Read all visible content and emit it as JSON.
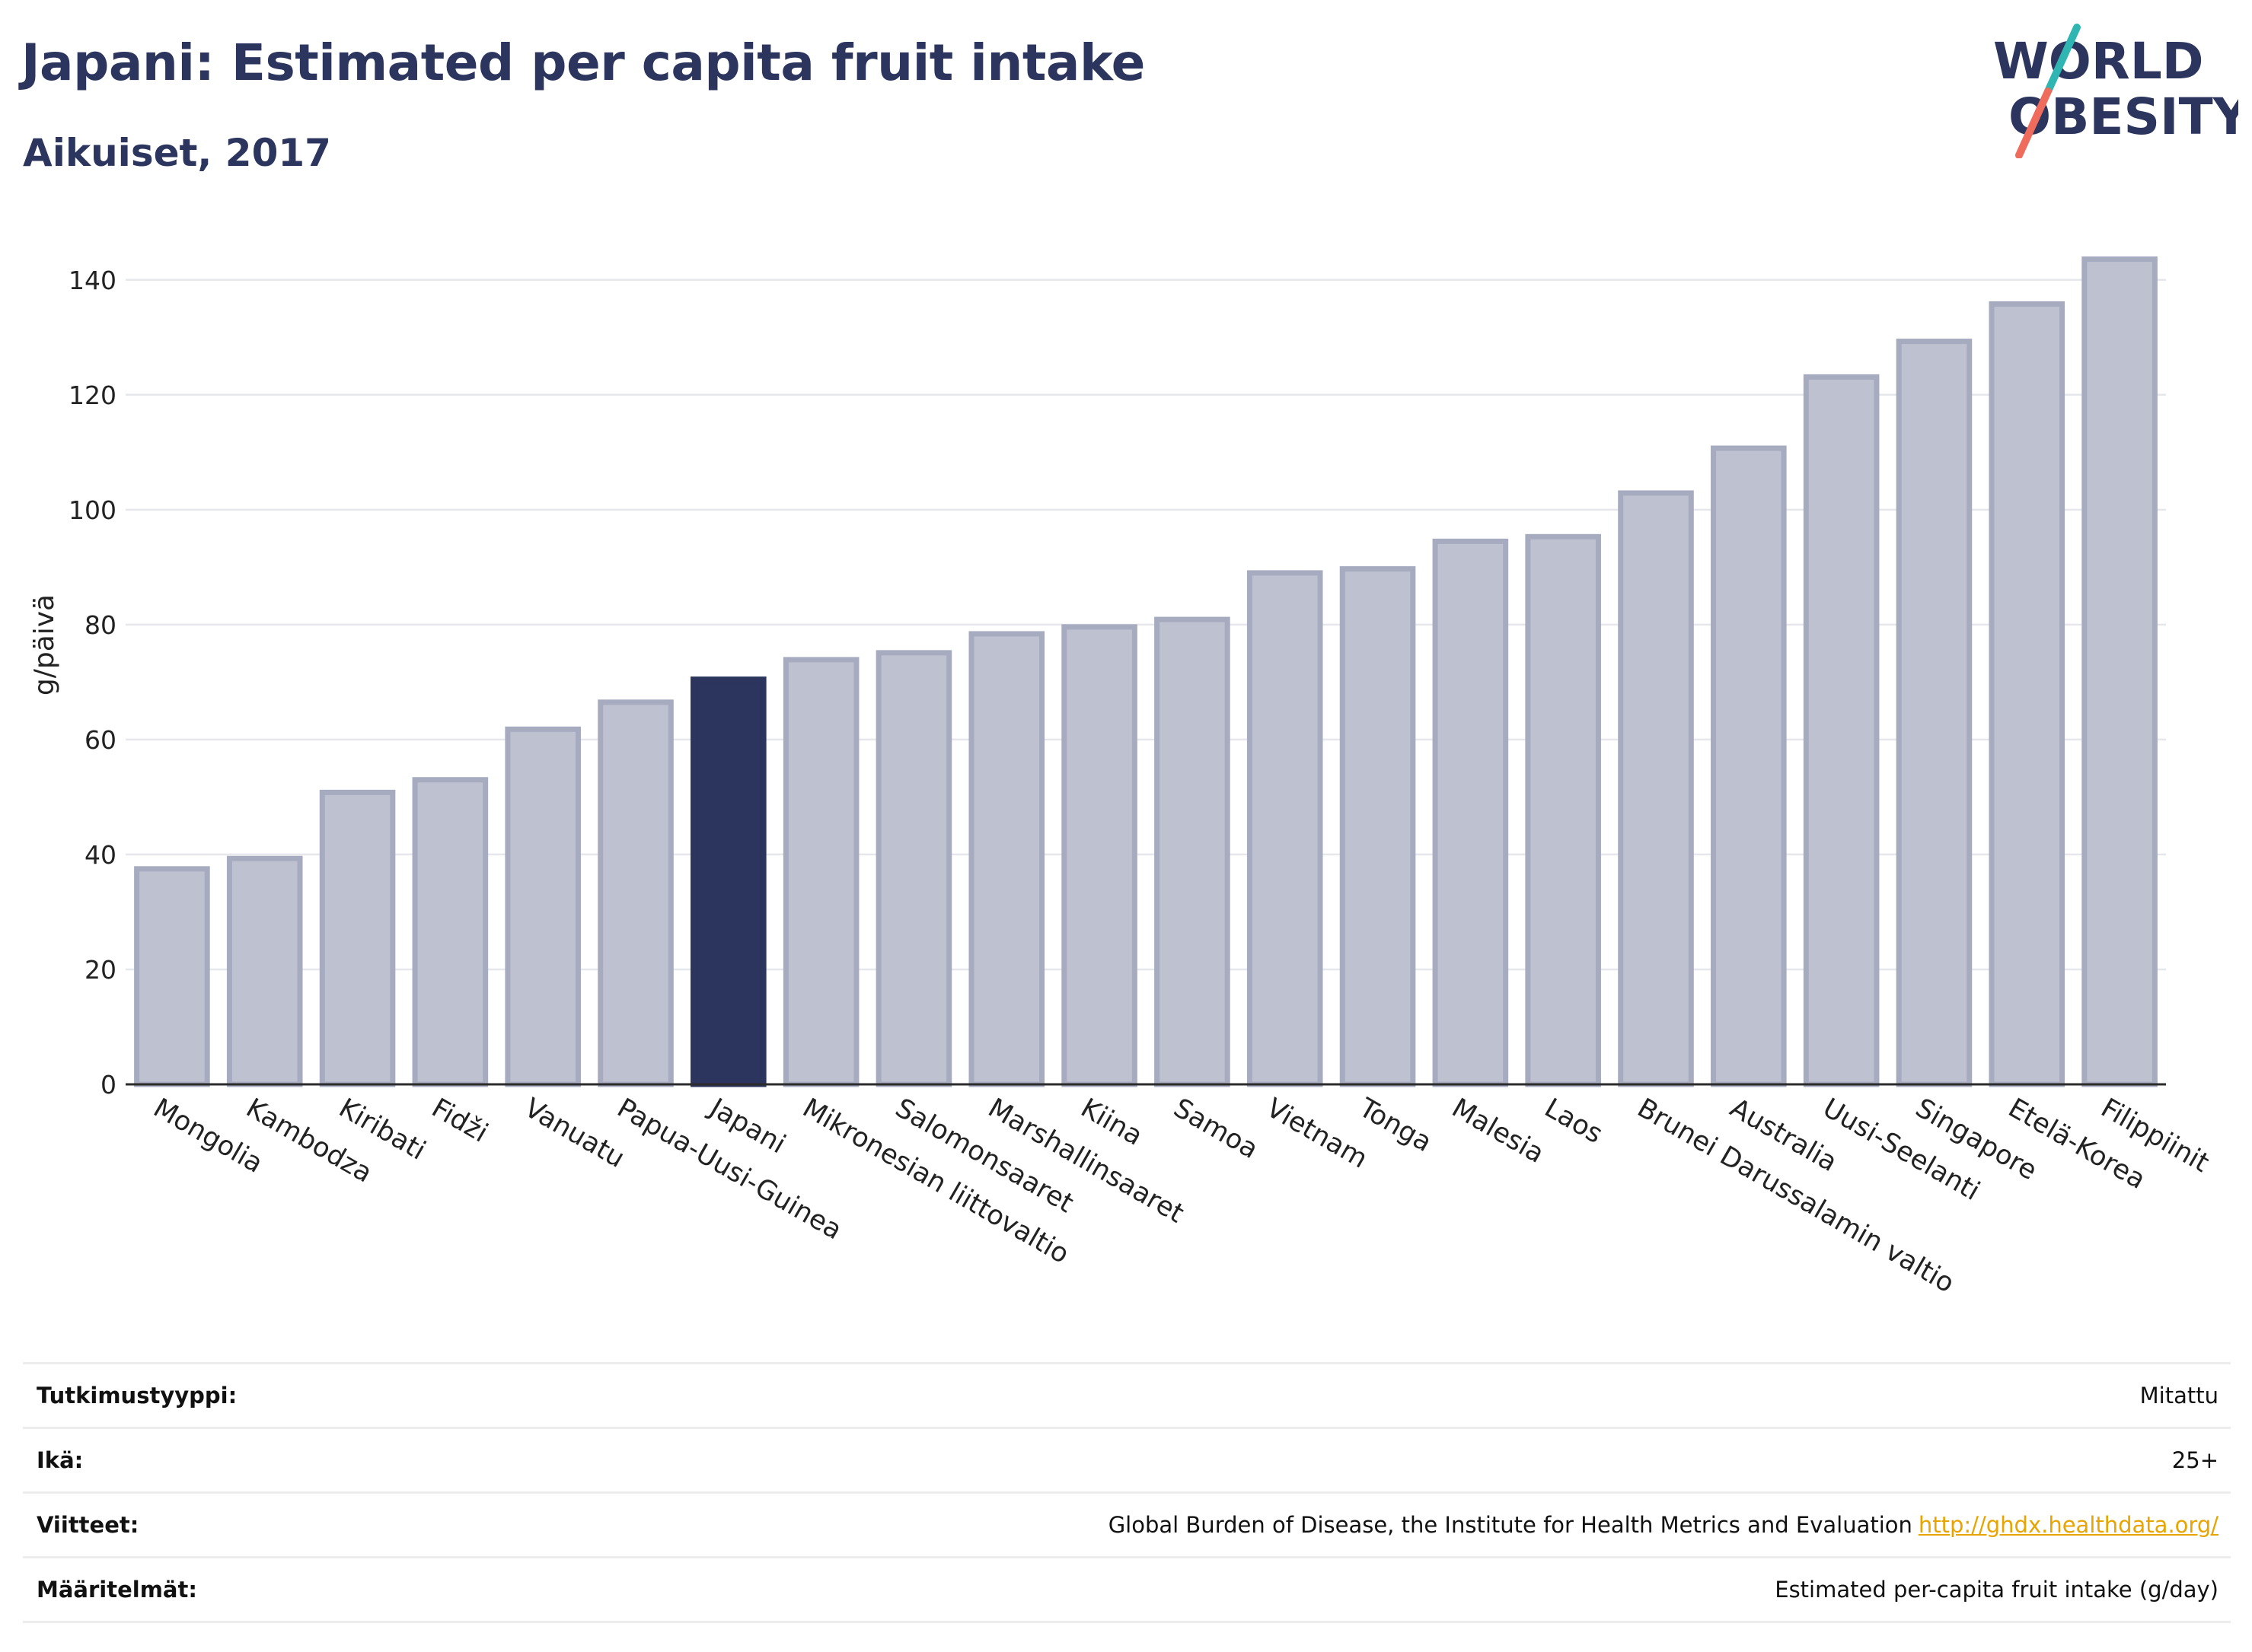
{
  "header": {
    "title": "Japani: Estimated per capita fruit intake",
    "subtitle": "Aikuiset, 2017"
  },
  "logo": {
    "line1": "WORLD",
    "line2": "OBESITY"
  },
  "colors": {
    "highlight": "#2b355e",
    "bar": "#bec1cf",
    "bar_stroke": "#a6abc0",
    "title": "#2b355e",
    "link": "#e8a400",
    "logo_teal": "#2fb6b2",
    "logo_coral": "#ef6b5b"
  },
  "chart_data": {
    "type": "bar",
    "title": "Japani: Estimated per capita fruit intake",
    "subtitle": "Aikuiset, 2017",
    "xlabel": "",
    "ylabel": "g/päivä",
    "ylim": [
      0,
      145
    ],
    "yticks": [
      0,
      20,
      40,
      60,
      80,
      100,
      120,
      140
    ],
    "grid": true,
    "highlight": "Japani",
    "categories": [
      "Mongolia",
      "Kambodza",
      "Kiribati",
      "Fidži",
      "Vanuatu",
      "Papua-Uusi-Guinea",
      "Japani",
      "Mikronesian liittovaltio",
      "Salomonsaaret",
      "Marshallinsaaret",
      "Kiina",
      "Samoa",
      "Vietnam",
      "Tonga",
      "Malesia",
      "Laos",
      "Brunei Darussalamin valtio",
      "Australia",
      "Uusi-Seelanti",
      "Singapore",
      "Etelä-Korea",
      "Filippiinit"
    ],
    "values": [
      37.5,
      39.3,
      50.8,
      53,
      61.8,
      66.5,
      70.5,
      73.9,
      75.1,
      78.4,
      79.6,
      80.9,
      89,
      89.7,
      94.5,
      95.3,
      102.9,
      110.7,
      123.1,
      129.3,
      135.8,
      143.6
    ]
  },
  "meta": [
    {
      "key": "Tutkimustyyppi:",
      "value": "Mitattu"
    },
    {
      "key": "Ikä:",
      "value": "25+"
    },
    {
      "key": "Viitteet:",
      "value": "Global Burden of Disease, the Institute for Health Metrics and Evaluation",
      "link": "http://ghdx.healthdata.org/"
    },
    {
      "key": "Määritelmät:",
      "value": "Estimated per-capita fruit intake (g/day)"
    }
  ]
}
